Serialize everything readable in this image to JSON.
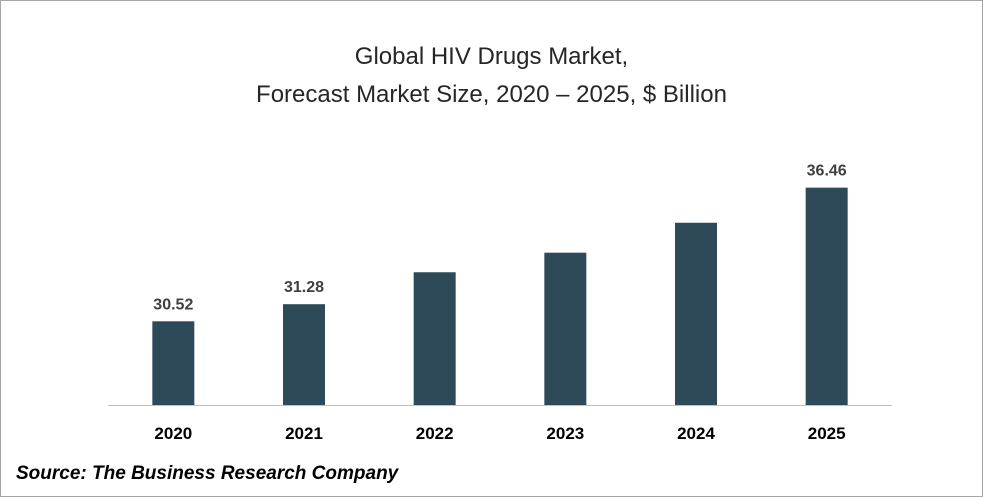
{
  "title_line1": "Global HIV Drugs Market,",
  "title_line2": "Forecast Market Size, 2020 – 2025, $ Billion",
  "source": "Source: The Business Research Company",
  "colors": {
    "bar": "#2e4a58",
    "axis": "#bfbfbf"
  },
  "chart_data": {
    "type": "bar",
    "title": "Global HIV Drugs Market, Forecast Market Size, 2020 – 2025, $ Billion",
    "xlabel": "",
    "ylabel": "",
    "categories": [
      "2020",
      "2021",
      "2022",
      "2023",
      "2024",
      "2025"
    ],
    "values": [
      30.52,
      31.28,
      32.7,
      33.57,
      34.9,
      36.46
    ],
    "data_labels": [
      "30.52",
      "31.28",
      "",
      "",
      "",
      "36.46"
    ],
    "ylim": [
      26.8,
      37.2
    ],
    "grid": false,
    "legend": "none"
  }
}
